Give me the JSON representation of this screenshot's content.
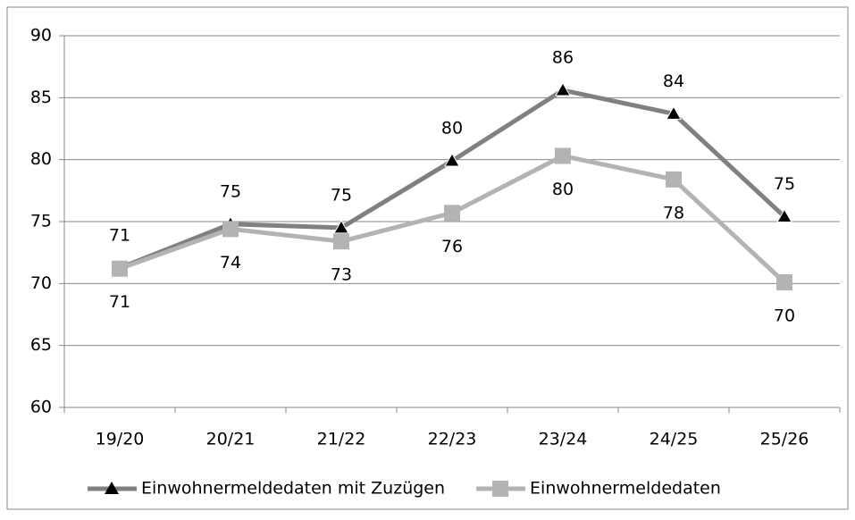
{
  "chart_data": {
    "type": "line",
    "categories": [
      "19/20",
      "20/21",
      "21/22",
      "22/23",
      "23/24",
      "24/25",
      "25/26"
    ],
    "series": [
      {
        "name": "Einwohnermeldedaten mit Zuzügen",
        "color": "#808080",
        "marker_color": "#000000",
        "marker": "triangle",
        "label_position": "above",
        "values": [
          71.25,
          74.8,
          74.5,
          79.9,
          85.6,
          83.7,
          75.4
        ],
        "value_labels": [
          "71",
          "75",
          "75",
          "80",
          "86",
          "84",
          "75"
        ]
      },
      {
        "name": "Einwohnermeldedaten",
        "color": "#b3b3b3",
        "marker_color": "#b3b3b3",
        "marker": "square",
        "label_position": "below",
        "values": [
          71.2,
          74.4,
          73.4,
          75.7,
          80.3,
          78.4,
          70.1
        ],
        "value_labels": [
          "71",
          "74",
          "73",
          "76",
          "80",
          "78",
          "70"
        ]
      }
    ],
    "ylim": [
      60,
      90
    ],
    "yticks": [
      60,
      65,
      70,
      75,
      80,
      85,
      90
    ],
    "grid": true,
    "legend": "bottom"
  }
}
